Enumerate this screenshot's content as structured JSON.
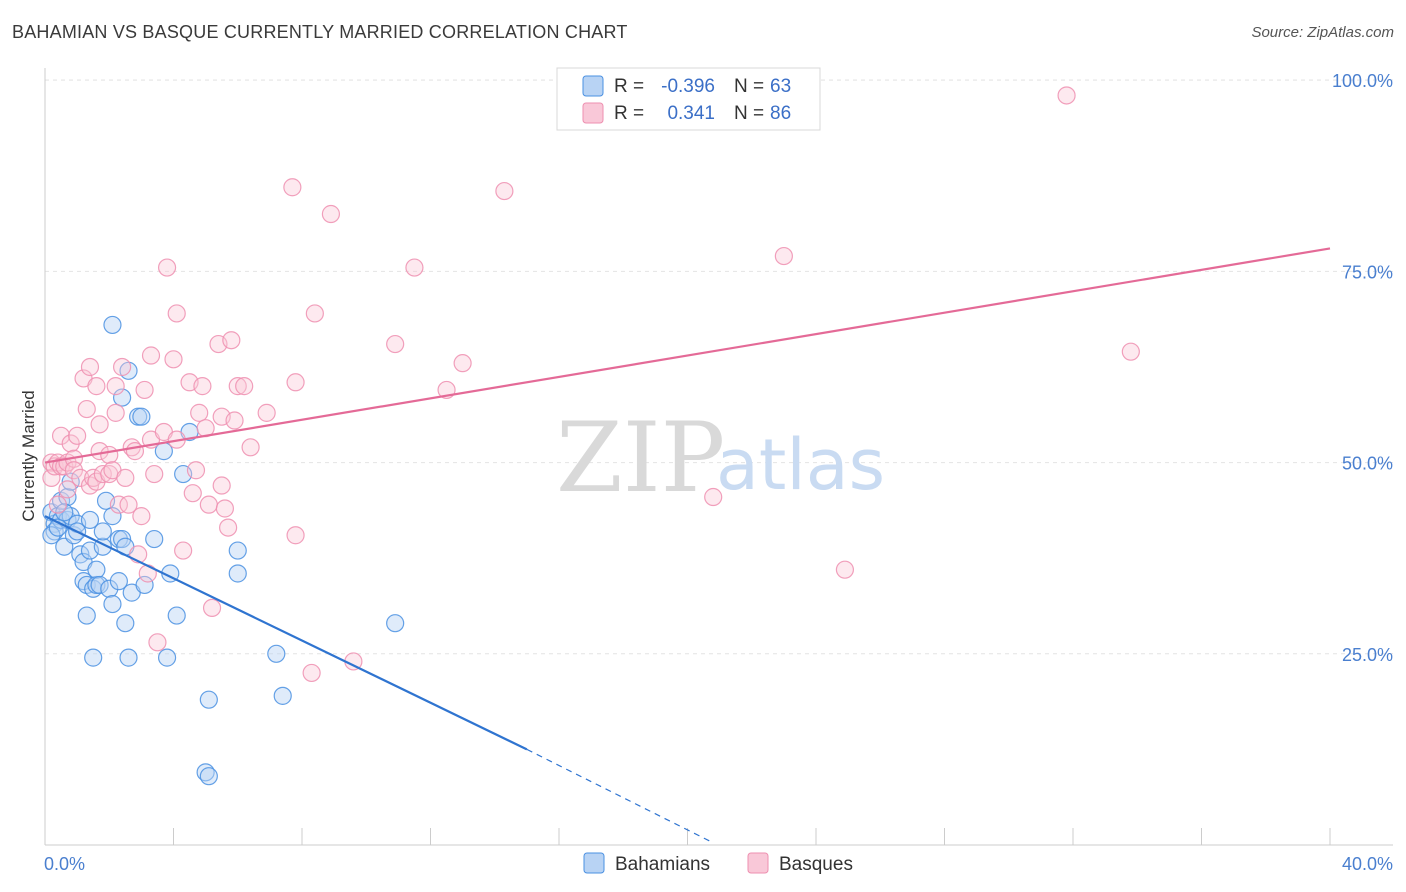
{
  "title": "BAHAMIAN VS BASQUE CURRENTLY MARRIED CORRELATION CHART",
  "source": "Source: ZipAtlas.com",
  "watermark": {
    "zip": "ZIP",
    "atlas": "atlas"
  },
  "colors": {
    "blue": "#4a90e2",
    "blue_line": "#2f74d0",
    "pink": "#ee8fb0",
    "pink_line": "#e46a97"
  },
  "legend": {
    "rows": [
      {
        "r_label": "R =",
        "r_value": "-0.396",
        "n_label": "N =",
        "n_value": "63"
      },
      {
        "r_label": "R =",
        "r_value": "0.341",
        "n_label": "N =",
        "n_value": "86"
      }
    ]
  },
  "chart_data": {
    "type": "scatter",
    "title": "BAHAMIAN VS BASQUE CURRENTLY MARRIED CORRELATION CHART",
    "xlabel": "",
    "ylabel": "Currently Married",
    "xlim": [
      0,
      40
    ],
    "ylim": [
      0,
      100
    ],
    "x_tick_labels": [
      "0.0%",
      "40.0%"
    ],
    "y_ticks": [
      25,
      50,
      75,
      100
    ],
    "y_tick_labels": [
      "25.0%",
      "50.0%",
      "75.0%",
      "100.0%"
    ],
    "grid": true,
    "legend_placement": "top-center",
    "series": [
      {
        "name": "Bahamians",
        "color": "#4a90e2",
        "trend": {
          "x": [
            0,
            15.0
          ],
          "y": [
            43.0,
            12.5
          ],
          "dashed_to": [
            20.7,
            0.5
          ]
        },
        "points": [
          [
            0.2,
            43.5
          ],
          [
            0.3,
            42
          ],
          [
            0.3,
            41
          ],
          [
            0.4,
            43
          ],
          [
            0.5,
            45
          ],
          [
            0.5,
            42.5
          ],
          [
            0.6,
            39
          ],
          [
            0.7,
            42.5
          ],
          [
            0.7,
            45.5
          ],
          [
            0.8,
            47.5
          ],
          [
            0.8,
            43
          ],
          [
            0.9,
            40.5
          ],
          [
            1.0,
            42
          ],
          [
            1.0,
            41
          ],
          [
            1.1,
            38
          ],
          [
            1.2,
            34.5
          ],
          [
            1.2,
            37
          ],
          [
            1.3,
            34
          ],
          [
            1.3,
            30
          ],
          [
            1.4,
            42.5
          ],
          [
            1.4,
            38.5
          ],
          [
            1.5,
            24.5
          ],
          [
            1.5,
            33.5
          ],
          [
            1.6,
            34
          ],
          [
            1.6,
            36
          ],
          [
            1.7,
            34
          ],
          [
            1.8,
            39
          ],
          [
            1.9,
            45
          ],
          [
            2.0,
            33.5
          ],
          [
            2.1,
            43
          ],
          [
            2.1,
            31.5
          ],
          [
            2.1,
            68
          ],
          [
            2.3,
            34.5
          ],
          [
            2.3,
            40
          ],
          [
            2.4,
            58.5
          ],
          [
            2.4,
            40
          ],
          [
            2.5,
            39
          ],
          [
            2.5,
            29
          ],
          [
            2.6,
            62
          ],
          [
            2.6,
            24.5
          ],
          [
            2.7,
            33
          ],
          [
            2.9,
            56
          ],
          [
            3.0,
            56
          ],
          [
            3.1,
            34
          ],
          [
            3.4,
            40
          ],
          [
            3.7,
            51.5
          ],
          [
            3.8,
            24.5
          ],
          [
            3.9,
            35.5
          ],
          [
            4.1,
            30
          ],
          [
            4.3,
            48.5
          ],
          [
            4.5,
            54
          ],
          [
            5.0,
            9.5
          ],
          [
            5.1,
            9
          ],
          [
            5.1,
            19
          ],
          [
            6.0,
            38.5
          ],
          [
            6.0,
            35.5
          ],
          [
            7.2,
            25
          ],
          [
            7.4,
            19.5
          ],
          [
            10.9,
            29
          ],
          [
            0.2,
            40.5
          ],
          [
            0.4,
            41.5
          ],
          [
            0.6,
            43.5
          ],
          [
            1.8,
            41
          ]
        ]
      },
      {
        "name": "Basques",
        "color": "#ee8fb0",
        "trend": {
          "x": [
            0,
            40.0
          ],
          "y": [
            50.0,
            78.0
          ]
        },
        "points": [
          [
            0.2,
            48
          ],
          [
            0.2,
            50
          ],
          [
            0.3,
            49.5
          ],
          [
            0.4,
            50
          ],
          [
            0.4,
            44.5
          ],
          [
            0.5,
            53.5
          ],
          [
            0.5,
            49.5
          ],
          [
            0.6,
            49.5
          ],
          [
            0.7,
            50
          ],
          [
            0.7,
            46.5
          ],
          [
            0.8,
            52.5
          ],
          [
            0.9,
            50.5
          ],
          [
            0.9,
            49
          ],
          [
            1.0,
            53.5
          ],
          [
            1.1,
            48
          ],
          [
            1.2,
            61
          ],
          [
            1.3,
            57
          ],
          [
            1.4,
            47
          ],
          [
            1.4,
            62.5
          ],
          [
            1.5,
            48
          ],
          [
            1.6,
            47.5
          ],
          [
            1.6,
            60
          ],
          [
            1.7,
            51.5
          ],
          [
            1.7,
            55
          ],
          [
            1.8,
            48.5
          ],
          [
            2.0,
            48.5
          ],
          [
            2.0,
            51
          ],
          [
            2.1,
            49
          ],
          [
            2.2,
            56.5
          ],
          [
            2.2,
            60
          ],
          [
            2.3,
            44.5
          ],
          [
            2.4,
            62.5
          ],
          [
            2.5,
            48
          ],
          [
            2.6,
            44.5
          ],
          [
            2.7,
            52
          ],
          [
            2.8,
            51.5
          ],
          [
            2.9,
            38
          ],
          [
            3.0,
            43
          ],
          [
            3.1,
            59.5
          ],
          [
            3.2,
            35.5
          ],
          [
            3.3,
            53
          ],
          [
            3.3,
            64
          ],
          [
            3.4,
            48.5
          ],
          [
            3.5,
            26.5
          ],
          [
            3.7,
            54
          ],
          [
            3.8,
            75.5
          ],
          [
            4.0,
            63.5
          ],
          [
            4.1,
            53
          ],
          [
            4.1,
            69.5
          ],
          [
            4.3,
            38.5
          ],
          [
            4.5,
            60.5
          ],
          [
            4.6,
            46
          ],
          [
            4.7,
            49
          ],
          [
            4.8,
            56.5
          ],
          [
            4.9,
            60
          ],
          [
            5.0,
            54.5
          ],
          [
            5.1,
            44.5
          ],
          [
            5.2,
            31
          ],
          [
            5.4,
            65.5
          ],
          [
            5.5,
            47
          ],
          [
            5.5,
            56
          ],
          [
            5.6,
            44
          ],
          [
            5.7,
            41.5
          ],
          [
            5.8,
            66
          ],
          [
            5.9,
            55.5
          ],
          [
            6.0,
            60
          ],
          [
            6.2,
            60
          ],
          [
            6.4,
            52
          ],
          [
            6.9,
            56.5
          ],
          [
            7.7,
            86
          ],
          [
            7.8,
            40.5
          ],
          [
            7.8,
            60.5
          ],
          [
            8.3,
            22.5
          ],
          [
            8.4,
            69.5
          ],
          [
            8.9,
            82.5
          ],
          [
            9.6,
            24
          ],
          [
            10.9,
            65.5
          ],
          [
            11.5,
            75.5
          ],
          [
            12.5,
            59.5
          ],
          [
            13.0,
            63
          ],
          [
            14.3,
            85.5
          ],
          [
            20.8,
            45.5
          ],
          [
            23.0,
            77
          ],
          [
            24.9,
            36
          ],
          [
            31.8,
            98
          ],
          [
            33.8,
            64.5
          ]
        ]
      }
    ]
  }
}
